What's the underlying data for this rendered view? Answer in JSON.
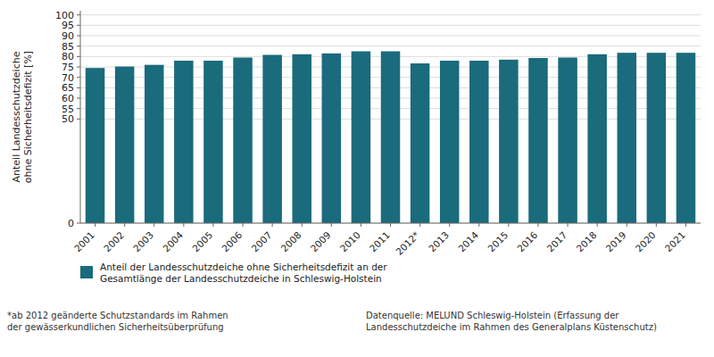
{
  "chart_data": {
    "type": "bar",
    "y_label": "Anteil Landesschutzdeiche\nohne Sicherheitsdefizit [%]",
    "categories": [
      "2001",
      "2002",
      "2003",
      "2004",
      "2005",
      "2006",
      "2007",
      "2008",
      "2009",
      "2010",
      "2011",
      "2012*",
      "2013",
      "2014",
      "2015",
      "2016",
      "2017",
      "2018",
      "2019",
      "2020",
      "2021"
    ],
    "series": [
      {
        "name": "Anteil der Landesschutzdeiche ohne Sicherheitsdefizit an der\nGesamtlänge der Landesschutzdeiche in Schleswig-Holstein",
        "color": "#1a6b7c",
        "values": [
          74.5,
          75.2,
          76.0,
          78.0,
          78.0,
          79.5,
          80.8,
          81.1,
          81.5,
          82.5,
          82.5,
          76.7,
          78.0,
          78.0,
          78.5,
          79.3,
          79.5,
          81.1,
          81.8,
          81.8,
          81.8
        ]
      }
    ],
    "ylim": [
      0,
      102
    ],
    "yticks": [
      0,
      50,
      55,
      60,
      65,
      70,
      75,
      80,
      85,
      90,
      95,
      100
    ],
    "grid": true,
    "legend": "bottom",
    "annotations": [
      "*ab 2012 geänderte Schutzstandards im Rahmen\nder gewässerkundlichen Sicherheitsüberprüfung",
      "Datenquelle: MELUND Schleswig-Holstein (Erfassung der\nLandesschutzdeiche im Rahmen des Generalplans Küstenschutz)"
    ]
  }
}
